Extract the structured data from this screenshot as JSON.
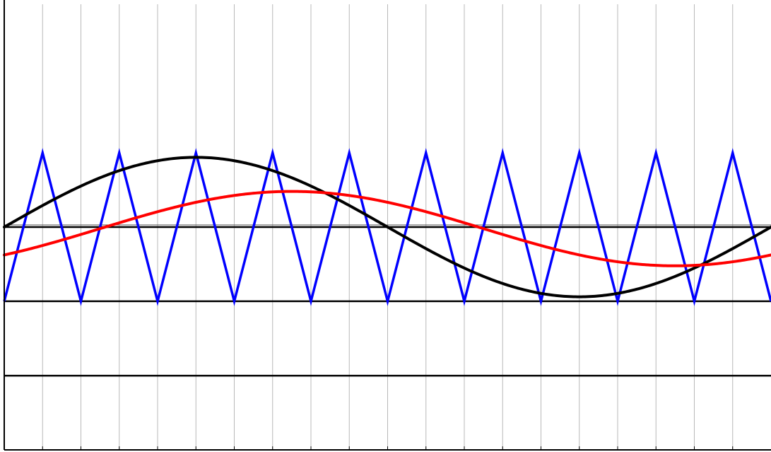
{
  "chart_data": {
    "type": "line",
    "xlim": [
      0,
      20
    ],
    "ylim": [
      -1,
      1
    ],
    "grid": {
      "vertical": true,
      "horizontal": false
    },
    "vertical_grid_x": [
      1,
      2,
      3,
      4,
      5,
      6,
      7,
      8,
      9,
      10,
      11,
      12,
      13,
      14,
      15,
      16,
      17,
      18,
      19
    ],
    "horizontal_rules_y": [
      0,
      -0.333,
      -0.667
    ],
    "series": [
      {
        "color": "#0000ff",
        "shape": "triangle",
        "period": 2,
        "amplitude": 0.333,
        "offset": 0,
        "x": [
          0,
          1,
          2,
          3,
          4,
          5,
          6,
          7,
          8,
          9,
          10,
          11,
          12,
          13,
          14,
          15,
          16,
          17,
          18,
          19,
          20
        ],
        "y": [
          -0.333,
          0.333,
          -0.333,
          0.333,
          -0.333,
          0.333,
          -0.333,
          0.333,
          -0.333,
          0.333,
          -0.333,
          0.333,
          -0.333,
          0.333,
          -0.333,
          0.333,
          -0.333,
          0.333,
          -0.333,
          0.333,
          -0.333
        ]
      },
      {
        "color": "#000000",
        "shape": "sine",
        "period": 20,
        "amplitude": 0.313,
        "offset": 0,
        "phase_start_x": 0
      },
      {
        "color": "#ff0000",
        "shape": "sine",
        "period": 20,
        "amplitude": 0.167,
        "offset": -0.007,
        "phase_start_x": 2.5
      }
    ]
  }
}
